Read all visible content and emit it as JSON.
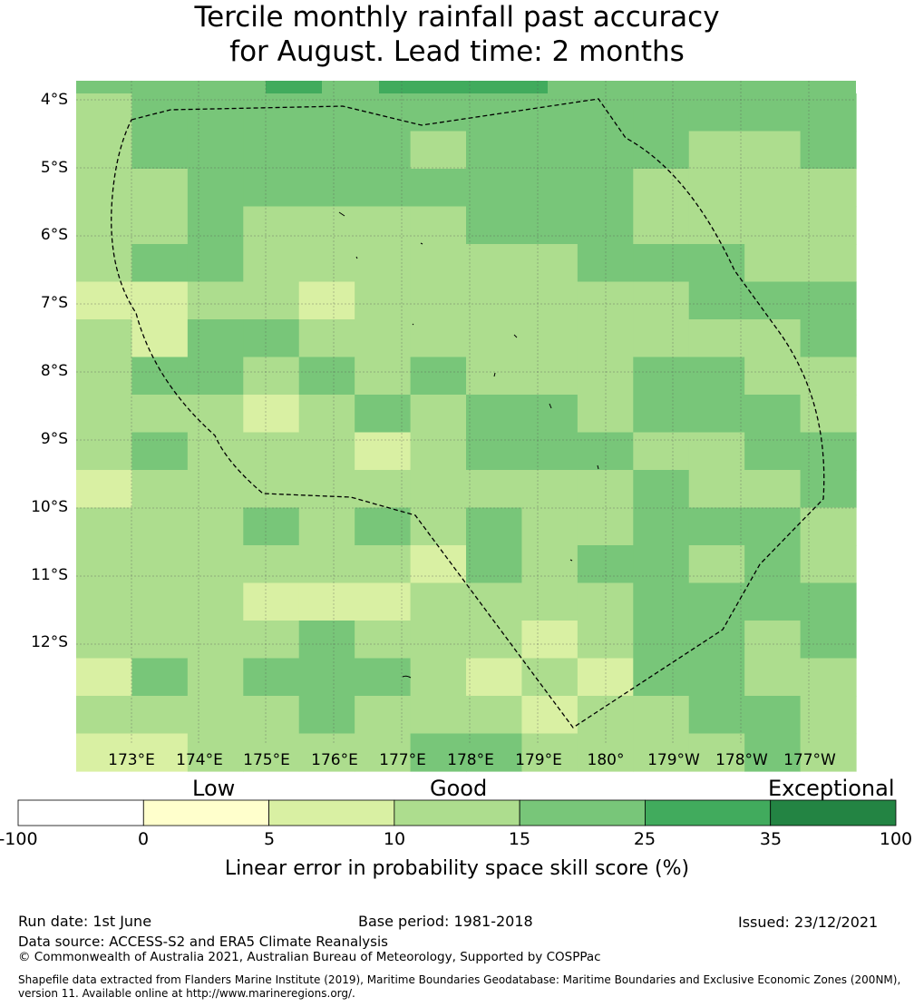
{
  "title": {
    "line1": "Tercile monthly rainfall past accuracy",
    "line2": "for August. Lead time: 2 months"
  },
  "map": {
    "lat_labels": [
      "4°S",
      "5°S",
      "6°S",
      "7°S",
      "8°S",
      "9°S",
      "10°S",
      "11°S",
      "12°S"
    ],
    "lon_labels": [
      "173°E",
      "174°E",
      "175°E",
      "176°E",
      "177°E",
      "178°E",
      "179°E",
      "180°",
      "179°W",
      "178°W",
      "177°W"
    ],
    "grid_rows": [
      "1 2 2 2 2 2 2 2 2 2 2 2 2 2",
      "1 2 2 2 2 2 1 2 2 2 2 1 1 2",
      "1 1 2 2 2 2 2 2 2 2 1 1 1 1",
      "1 1 2 1 1 1 1 2 2 2 1 1 1 1",
      "1 2 2 1 1 1 1 1 1 2 2 2 1 1",
      "0 0 1 1 0 1 1 1 1 1 1 2 2 2",
      "1 0 2 2 1 1 1 1 1 1 1 1 1 2",
      "1 2 2 1 2 1 2 1 1 1 2 2 1 1",
      "1 1 1 0 1 2 1 2 2 1 2 2 2 1",
      "1 2 1 1 1 0 1 2 2 2 1 1 2 2",
      "0 1 1 1 1 1 1 1 1 1 2 1 1 2",
      "1 1 1 2 1 2 1 2 1 1 2 2 2 1",
      "1 1 1 1 1 1 0 2 1 2 2 1 2 1",
      "1 1 1 0 0 0 1 1 1 1 2 2 2 2",
      "1 1 1 1 2 1 1 1 0 1 2 2 1 2",
      "0 2 1 2 2 2 1 0 1 0 2 2 1 1",
      "1 1 1 1 2 1 1 1 0 1 1 2 2 1",
      "0 0 1 1 1 1 2 2 1 1 1 1 2 1"
    ],
    "top_row_extra": "darker strip 25-35% near 175-176E and 177-179E"
  },
  "legend": {
    "categories": [
      "Low",
      "Good",
      "Exceptional"
    ],
    "ticks": [
      "-100",
      "0",
      "5",
      "10",
      "15",
      "25",
      "35",
      "100"
    ],
    "colors": [
      "#ffffff",
      "#ffffcc",
      "#d9f0a3",
      "#addd8e",
      "#78c679",
      "#41ab5d",
      "#238443"
    ],
    "label": "Linear error in probability space skill score (%)"
  },
  "footer": {
    "run_date": "Run date: 1st June",
    "base_period": "Base period: 1981-2018",
    "issued": "Issued: 23/12/2021",
    "data_source": "Data source: ACCESS-S2 and ERA5 Climate Reanalysis",
    "copyright": "© Commonwealth of Australia 2021, Australian Bureau of Meteorology, Supported by COSPPac",
    "shapefile1": "Shapefile data extracted from Flanders Marine Institute (2019), Maritime Boundaries Geodatabase: Maritime Boundaries and Exclusive Economic Zones (200NM),",
    "shapefile2": "version 11. Available online at http://www.marineregions.org/."
  }
}
